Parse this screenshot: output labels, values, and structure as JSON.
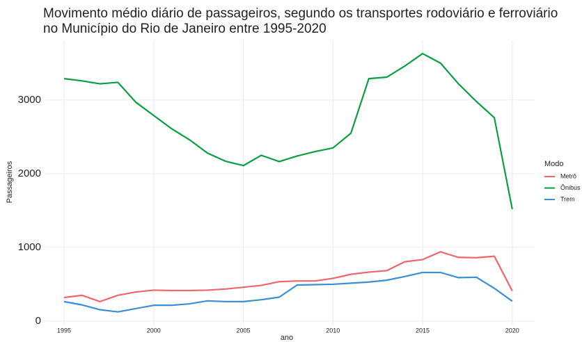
{
  "chart_data": {
    "type": "line",
    "title": [
      "Movimento médio diário de passageiros, segundo os transportes rodoviário e ferroviário",
      "no Município do Rio de Janeiro entre 1995-2020"
    ],
    "xlabel": "ano",
    "ylabel": "Passageiros",
    "x": [
      1995,
      1996,
      1997,
      1998,
      1999,
      2000,
      2001,
      2002,
      2003,
      2004,
      2005,
      2006,
      2007,
      2008,
      2009,
      2010,
      2011,
      2012,
      2013,
      2014,
      2015,
      2016,
      2017,
      2018,
      2019,
      2020
    ],
    "series": [
      {
        "name": "Metrô",
        "color": "#f0646c",
        "values": [
          320,
          350,
          265,
          350,
          395,
          420,
          415,
          415,
          420,
          435,
          460,
          485,
          535,
          545,
          545,
          580,
          635,
          665,
          685,
          805,
          835,
          940,
          865,
          860,
          880,
          410
        ]
      },
      {
        "name": "Ônibus",
        "color": "#0b9e40",
        "values": [
          3290,
          3260,
          3220,
          3240,
          2970,
          2790,
          2610,
          2460,
          2280,
          2170,
          2110,
          2250,
          2165,
          2240,
          2300,
          2350,
          2550,
          3290,
          3310,
          3460,
          3630,
          3500,
          3220,
          2980,
          2760,
          1520
        ]
      },
      {
        "name": "Trem",
        "color": "#3a8fd6",
        "values": [
          265,
          220,
          155,
          125,
          170,
          215,
          215,
          235,
          275,
          265,
          265,
          290,
          325,
          490,
          495,
          500,
          515,
          530,
          555,
          605,
          660,
          660,
          590,
          595,
          445,
          270
        ]
      }
    ],
    "xlim": [
      1993.95,
      2021.25
    ],
    "xticks": [
      1995,
      2000,
      2005,
      2010,
      2015,
      2020
    ],
    "ylim": [
      -57,
      3810
    ],
    "yticks": [
      0,
      1000,
      2000,
      3000
    ],
    "grid": true,
    "legend_title": "Modo",
    "legend": "right"
  }
}
